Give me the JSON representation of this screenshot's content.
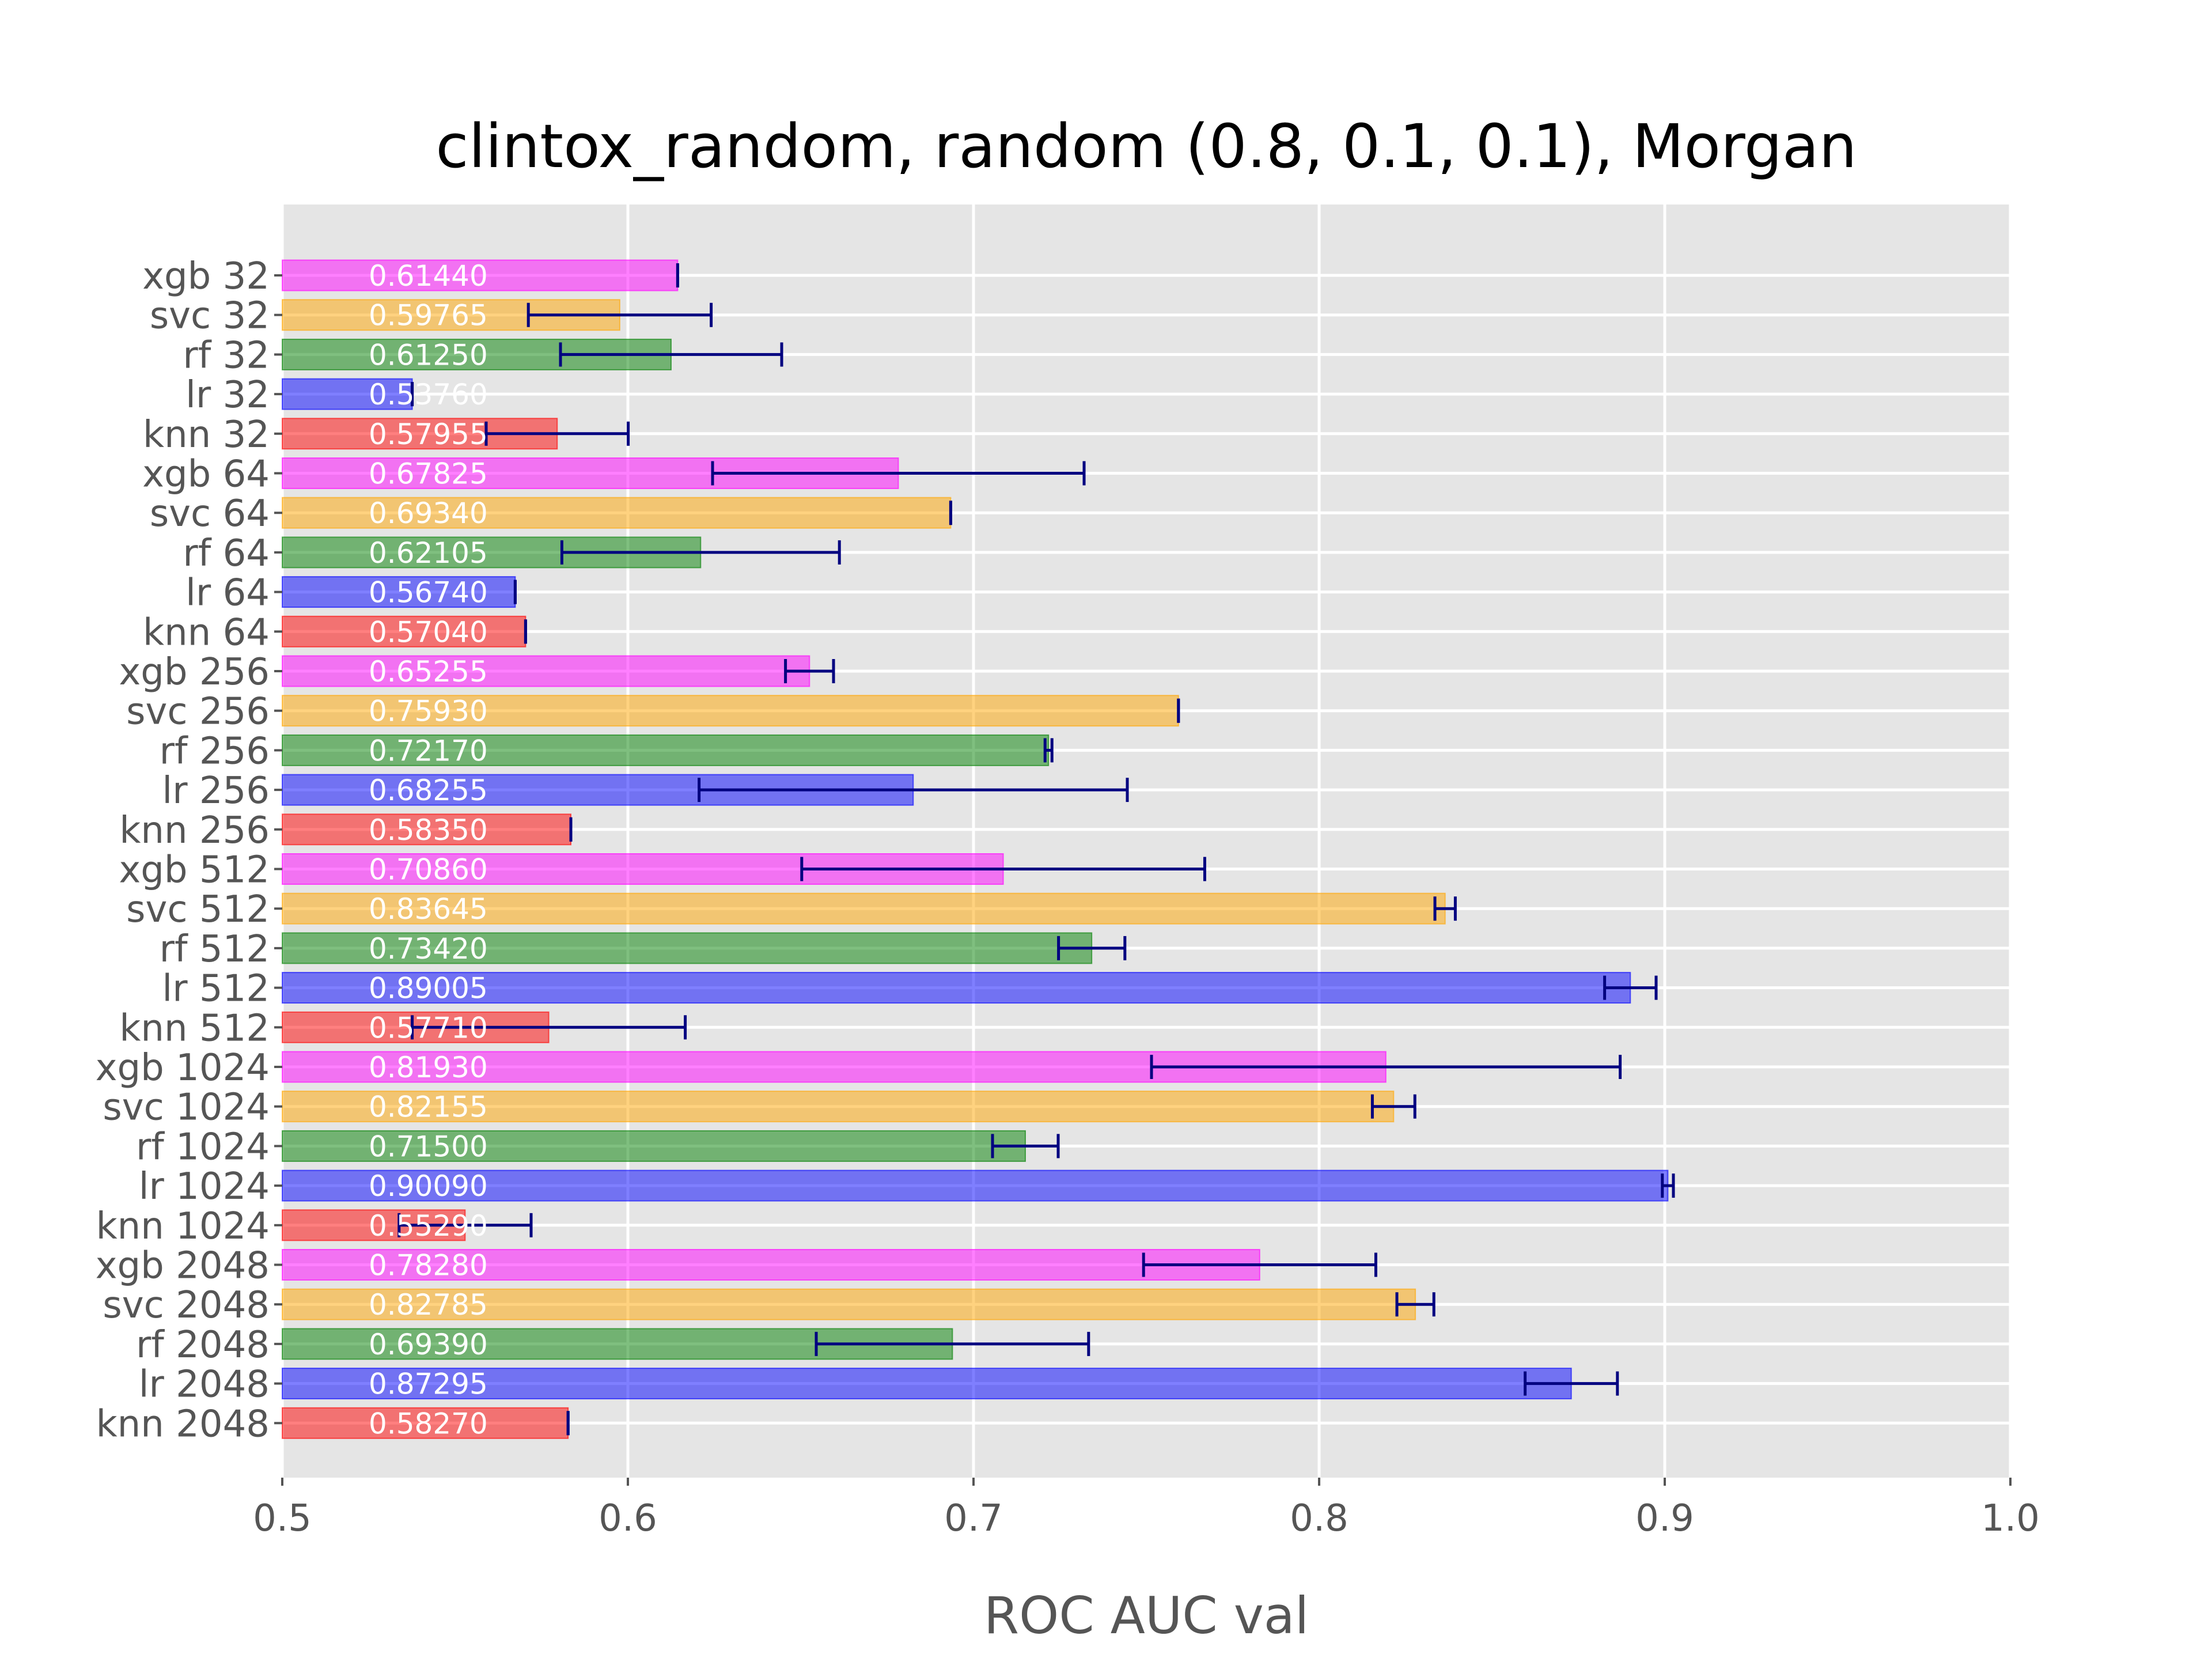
{
  "chart_data": {
    "type": "bar",
    "orientation": "horizontal",
    "title": "clintox_random, random (0.8, 0.1, 0.1), Morgan",
    "xlabel": "ROC AUC val",
    "ylabel": "",
    "xlim": [
      0.5,
      1.0
    ],
    "xticks": [
      "0.5",
      "0.6",
      "0.7",
      "0.8",
      "0.9",
      "1.0"
    ],
    "grid": true,
    "legend": "none",
    "colors": {
      "xgb": "#ff00ff",
      "svc": "#ffa500",
      "rf": "#008000",
      "lr": "#0000ff",
      "knn": "#ff0000",
      "error_bar": "#000080",
      "background": "#e5e5e5",
      "grid": "#ffffff"
    },
    "bars": [
      {
        "category": "xgb 32",
        "model": "xgb",
        "value": 0.6144,
        "label": "0.61440",
        "err_low": 0.6144,
        "err_high": 0.6144
      },
      {
        "category": "svc 32",
        "model": "svc",
        "value": 0.59765,
        "label": "0.59765",
        "err_low": 0.5712,
        "err_high": 0.6241
      },
      {
        "category": "rf 32",
        "model": "rf",
        "value": 0.6125,
        "label": "0.61250",
        "err_low": 0.5805,
        "err_high": 0.6445
      },
      {
        "category": "lr 32",
        "model": "lr",
        "value": 0.5376,
        "label": "0.53760",
        "err_low": 0.5376,
        "err_high": 0.5376
      },
      {
        "category": "knn 32",
        "model": "knn",
        "value": 0.57955,
        "label": "0.57955",
        "err_low": 0.559,
        "err_high": 0.6001
      },
      {
        "category": "xgb 64",
        "model": "xgb",
        "value": 0.67825,
        "label": "0.67825",
        "err_low": 0.6245,
        "err_high": 0.732
      },
      {
        "category": "svc 64",
        "model": "svc",
        "value": 0.6934,
        "label": "0.69340",
        "err_low": 0.6934,
        "err_high": 0.6934
      },
      {
        "category": "rf 64",
        "model": "rf",
        "value": 0.62105,
        "label": "0.62105",
        "err_low": 0.5809,
        "err_high": 0.6612
      },
      {
        "category": "lr 64",
        "model": "lr",
        "value": 0.5674,
        "label": "0.56740",
        "err_low": 0.5674,
        "err_high": 0.5674
      },
      {
        "category": "knn 64",
        "model": "knn",
        "value": 0.5704,
        "label": "0.57040",
        "err_low": 0.5704,
        "err_high": 0.5704
      },
      {
        "category": "xgb 256",
        "model": "xgb",
        "value": 0.65255,
        "label": "0.65255",
        "err_low": 0.6456,
        "err_high": 0.6595
      },
      {
        "category": "svc 256",
        "model": "svc",
        "value": 0.7593,
        "label": "0.75930",
        "err_low": 0.7593,
        "err_high": 0.7593
      },
      {
        "category": "rf 256",
        "model": "rf",
        "value": 0.7217,
        "label": "0.72170",
        "err_low": 0.7207,
        "err_high": 0.7227
      },
      {
        "category": "lr 256",
        "model": "lr",
        "value": 0.68255,
        "label": "0.68255",
        "err_low": 0.6206,
        "err_high": 0.7445
      },
      {
        "category": "knn 256",
        "model": "knn",
        "value": 0.5835,
        "label": "0.58350",
        "err_low": 0.5835,
        "err_high": 0.5835
      },
      {
        "category": "xgb 512",
        "model": "xgb",
        "value": 0.7086,
        "label": "0.70860",
        "err_low": 0.6503,
        "err_high": 0.7669
      },
      {
        "category": "svc 512",
        "model": "svc",
        "value": 0.83645,
        "label": "0.83645",
        "err_low": 0.8335,
        "err_high": 0.8394
      },
      {
        "category": "rf 512",
        "model": "rf",
        "value": 0.7342,
        "label": "0.73420",
        "err_low": 0.7246,
        "err_high": 0.7438
      },
      {
        "category": "lr 512",
        "model": "lr",
        "value": 0.89005,
        "label": "0.89005",
        "err_low": 0.8826,
        "err_high": 0.8975
      },
      {
        "category": "knn 512",
        "model": "knn",
        "value": 0.5771,
        "label": "0.57710",
        "err_low": 0.5376,
        "err_high": 0.6166
      },
      {
        "category": "xgb 1024",
        "model": "xgb",
        "value": 0.8193,
        "label": "0.81930",
        "err_low": 0.7515,
        "err_high": 0.8871
      },
      {
        "category": "svc 1024",
        "model": "svc",
        "value": 0.82155,
        "label": "0.82155",
        "err_low": 0.8154,
        "err_high": 0.8277
      },
      {
        "category": "rf 1024",
        "model": "rf",
        "value": 0.715,
        "label": "0.71500",
        "err_low": 0.7055,
        "err_high": 0.7245
      },
      {
        "category": "lr 1024",
        "model": "lr",
        "value": 0.9009,
        "label": "0.90090",
        "err_low": 0.8993,
        "err_high": 0.9025
      },
      {
        "category": "knn 1024",
        "model": "knn",
        "value": 0.5529,
        "label": "0.55290",
        "err_low": 0.5338,
        "err_high": 0.572
      },
      {
        "category": "xgb 2048",
        "model": "xgb",
        "value": 0.7828,
        "label": "0.78280",
        "err_low": 0.7492,
        "err_high": 0.8164
      },
      {
        "category": "svc 2048",
        "model": "svc",
        "value": 0.82785,
        "label": "0.82785",
        "err_low": 0.8225,
        "err_high": 0.8332
      },
      {
        "category": "rf 2048",
        "model": "rf",
        "value": 0.6939,
        "label": "0.69390",
        "err_low": 0.6545,
        "err_high": 0.7333
      },
      {
        "category": "lr 2048",
        "model": "lr",
        "value": 0.87295,
        "label": "0.87295",
        "err_low": 0.8596,
        "err_high": 0.8863
      },
      {
        "category": "knn 2048",
        "model": "knn",
        "value": 0.5827,
        "label": "0.58270",
        "err_low": 0.5827,
        "err_high": 0.5827
      }
    ]
  }
}
